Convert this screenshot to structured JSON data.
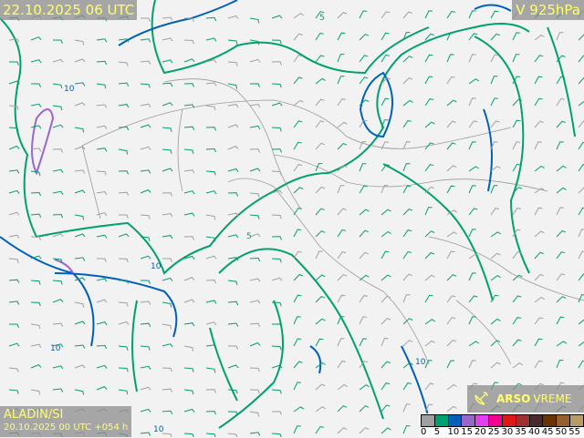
{
  "header": {
    "title": "22.10.2025 06 UTC",
    "level": "V 925hPa"
  },
  "model": {
    "name": "ALADIN/SI",
    "run": "20.10.2025 00 UTC +054 h"
  },
  "brand": {
    "bold": "ARSO",
    "light": "VREME",
    "icon": "satellite-dish-icon"
  },
  "legend": {
    "colors": [
      "#a0a0a0",
      "#00a070",
      "#0060b8",
      "#9966cc",
      "#e040f0",
      "#f0008c",
      "#e01818",
      "#a03030",
      "#4a2a2a",
      "#6a3400",
      "#946030",
      "#b89c68"
    ],
    "labels": [
      "0",
      "5",
      "10",
      "15",
      "20",
      "25",
      "30",
      "35",
      "40",
      "45",
      "50",
      "55"
    ]
  },
  "contour_labels": [
    "10",
    "10",
    "5",
    "10",
    "10",
    "5",
    "10"
  ],
  "colors": {
    "land": "#f2f2f2",
    "borders": "#909090",
    "contour_5": "#00a070",
    "contour_10": "#0060b8",
    "contour_15": "#9966cc",
    "barbs": "#00a070",
    "label_text": "#ffff66"
  }
}
